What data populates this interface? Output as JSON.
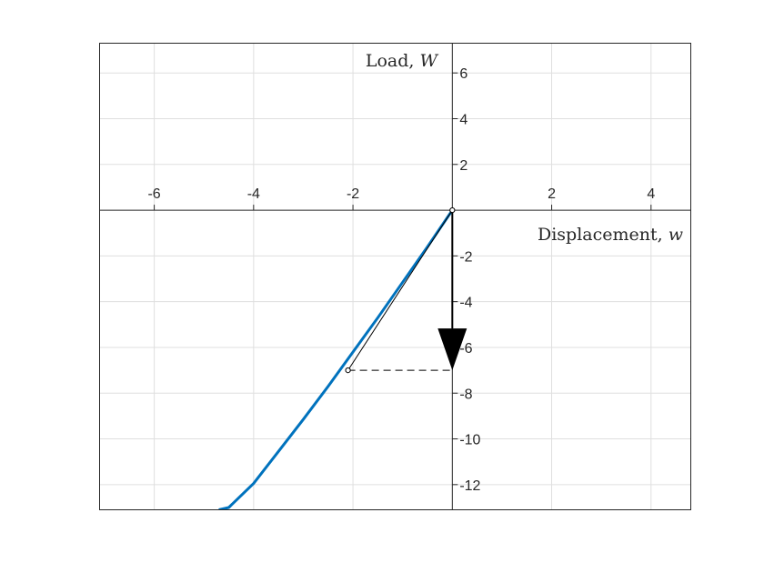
{
  "chart_data": {
    "type": "line",
    "title": "",
    "xlabel": {
      "text": "Displacement, ",
      "var": "w"
    },
    "ylabel": {
      "text": "Load, ",
      "var": "W"
    },
    "xlim": [
      -7.1,
      4.8
    ],
    "ylim": [
      -13.1,
      7.3
    ],
    "xticks": [
      -6,
      -4,
      -2,
      2,
      4
    ],
    "yticks": [
      6,
      4,
      2,
      -2,
      -4,
      -6,
      -8,
      -10,
      -12
    ],
    "xtick_labels": [
      "-6",
      "-4",
      "-2",
      "2",
      "4"
    ],
    "ytick_labels": [
      "6",
      "4",
      "2",
      "-2",
      "-4",
      "-6",
      "-8",
      "-10",
      "-12"
    ],
    "grid": true,
    "axes_through_origin": true,
    "series": [
      {
        "color": "#0072BD",
        "x": [
          0,
          -0.5,
          -1,
          -1.5,
          -2,
          -2.5,
          -3,
          -3.5,
          -4,
          -4.5,
          -4.7
        ],
        "y": [
          0,
          -1.6,
          -3.15,
          -4.7,
          -6.2,
          -7.7,
          -9.15,
          -10.55,
          -11.95,
          -13.0,
          -13.1
        ]
      }
    ],
    "annotations": {
      "load_arrow": {
        "from": [
          0,
          0
        ],
        "to": [
          0,
          -7.0
        ],
        "color": "#000000"
      },
      "secant_line": {
        "from": [
          0,
          0
        ],
        "to": [
          -2.1,
          -7.0
        ],
        "color": "#000000"
      },
      "dashed_line": {
        "from": [
          -2.1,
          -7.0
        ],
        "to": [
          0,
          -7.0
        ],
        "color": "#000000"
      },
      "markers": [
        {
          "x": 0,
          "y": 0
        },
        {
          "x": -2.1,
          "y": -7.0
        }
      ]
    },
    "colors": {
      "curve": "#0072BD",
      "grid": "#dfdfdf",
      "axis": "#262626"
    }
  }
}
